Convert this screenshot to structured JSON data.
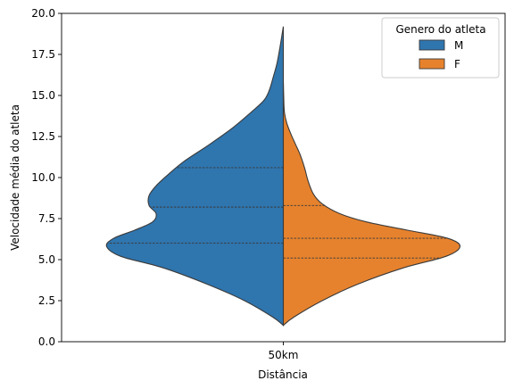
{
  "chart_data": {
    "type": "violin",
    "split": true,
    "xlabel": "Distância",
    "ylabel": "Velocidade média do atleta",
    "categories": [
      "50km"
    ],
    "ylim": [
      0,
      20
    ],
    "yticks": [
      0.0,
      2.5,
      5.0,
      7.5,
      10.0,
      12.5,
      15.0,
      17.5,
      20.0
    ],
    "ytick_labels": [
      "0.0",
      "2.5",
      "5.0",
      "7.5",
      "10.0",
      "12.5",
      "15.0",
      "17.5",
      "20.0"
    ],
    "grid": false,
    "legend": {
      "title": "Genero do atleta",
      "placement": "top-right",
      "entries": [
        {
          "label": "M",
          "color": "#2f75ae"
        },
        {
          "label": "F",
          "color": "#e6822d"
        }
      ]
    },
    "series": [
      {
        "name": "M",
        "side": "left",
        "color": "#2f75ae",
        "quartiles": [
          6.0,
          8.2,
          10.6
        ],
        "y_range": [
          1.0,
          19.2
        ],
        "density": [
          [
            1.0,
            0.0
          ],
          [
            1.5,
            0.06
          ],
          [
            2.5,
            0.22
          ],
          [
            3.5,
            0.43
          ],
          [
            4.5,
            0.68
          ],
          [
            5.2,
            0.92
          ],
          [
            5.8,
            1.0
          ],
          [
            6.3,
            0.96
          ],
          [
            6.8,
            0.84
          ],
          [
            7.3,
            0.74
          ],
          [
            7.8,
            0.72
          ],
          [
            8.3,
            0.76
          ],
          [
            8.9,
            0.76
          ],
          [
            9.5,
            0.72
          ],
          [
            10.2,
            0.65
          ],
          [
            11.0,
            0.56
          ],
          [
            12.0,
            0.42
          ],
          [
            13.0,
            0.29
          ],
          [
            14.0,
            0.18
          ],
          [
            14.7,
            0.11
          ],
          [
            15.3,
            0.08
          ],
          [
            16.2,
            0.055
          ],
          [
            17.0,
            0.035
          ],
          [
            18.0,
            0.018
          ],
          [
            19.2,
            0.0
          ]
        ]
      },
      {
        "name": "F",
        "side": "right",
        "color": "#e6822d",
        "quartiles": [
          5.1,
          6.3,
          8.3
        ],
        "y_range": [
          1.0,
          15.8
        ],
        "density": [
          [
            1.0,
            0.0
          ],
          [
            1.5,
            0.06
          ],
          [
            2.5,
            0.22
          ],
          [
            3.5,
            0.42
          ],
          [
            4.5,
            0.68
          ],
          [
            5.2,
            0.92
          ],
          [
            5.8,
            1.0
          ],
          [
            6.3,
            0.93
          ],
          [
            6.8,
            0.7
          ],
          [
            7.3,
            0.47
          ],
          [
            7.8,
            0.32
          ],
          [
            8.4,
            0.22
          ],
          [
            9.0,
            0.17
          ],
          [
            9.8,
            0.14
          ],
          [
            10.6,
            0.12
          ],
          [
            11.4,
            0.095
          ],
          [
            12.0,
            0.07
          ],
          [
            12.6,
            0.045
          ],
          [
            13.3,
            0.02
          ],
          [
            14.0,
            0.006
          ],
          [
            15.0,
            0.002
          ],
          [
            15.8,
            0.0
          ]
        ]
      }
    ]
  }
}
